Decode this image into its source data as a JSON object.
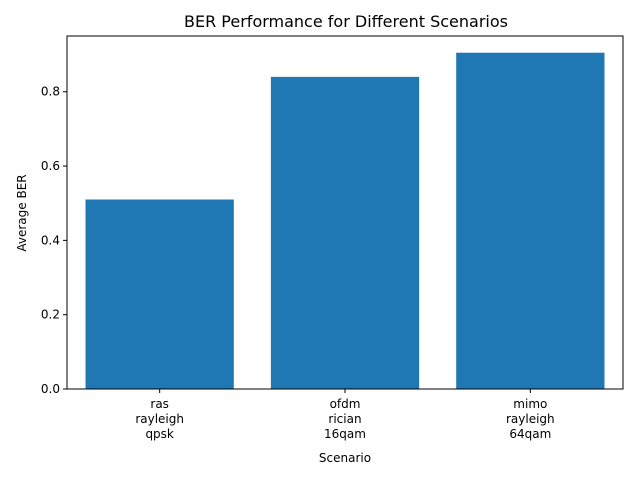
{
  "chart_data": {
    "type": "bar",
    "title": "BER Performance for Different Scenarios",
    "xlabel": "Scenario",
    "ylabel": "Average BER",
    "categories": [
      [
        "ras",
        "rayleigh",
        "qpsk"
      ],
      [
        "ofdm",
        "rician",
        "16qam"
      ],
      [
        "mimo",
        "rayleigh",
        "64qam"
      ]
    ],
    "values": [
      0.51,
      0.84,
      0.905
    ],
    "ylim": [
      0,
      0.95
    ],
    "yticks": [
      "0.0",
      "0.2",
      "0.4",
      "0.6",
      "0.8"
    ],
    "bar_color": "#1f77b4",
    "grid": false,
    "legend": "none"
  }
}
